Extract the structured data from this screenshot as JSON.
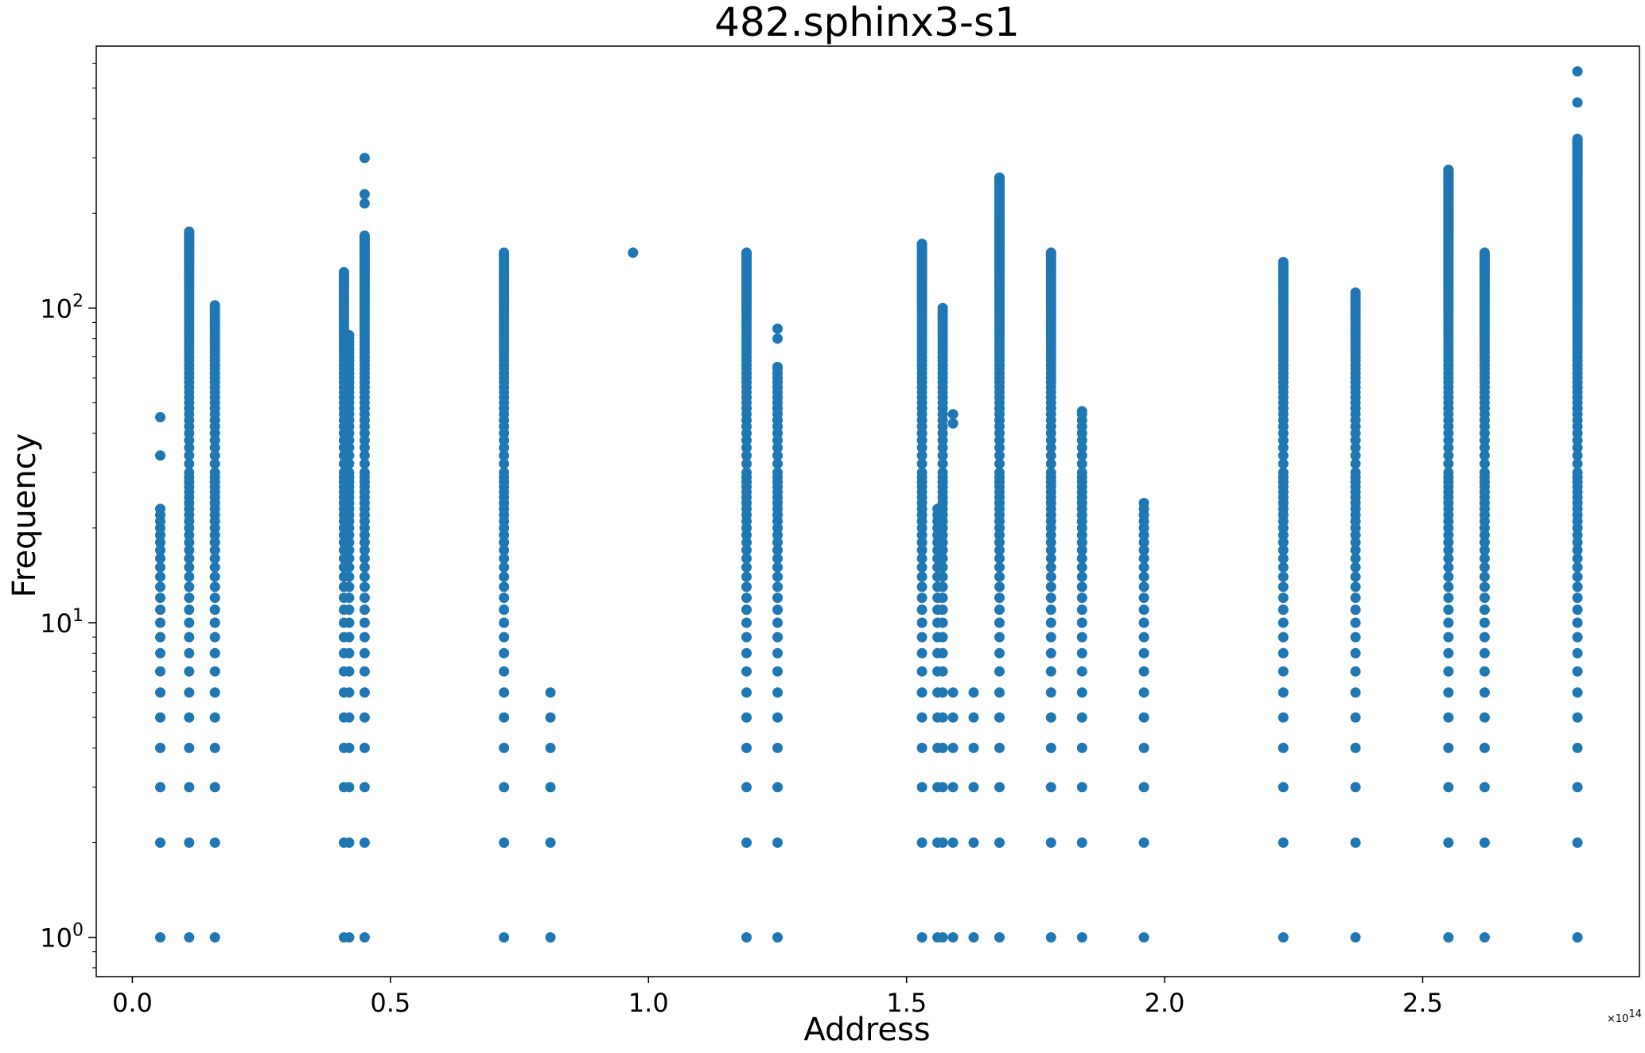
{
  "chart_data": {
    "type": "scatter",
    "title": "482.sphinx3-s1",
    "xlabel": "Address",
    "ylabel": "Frequency",
    "x_multiplier": "×10",
    "x_multiplier_exp": "14",
    "xlim": [
      -0.07,
      2.92
    ],
    "ylim": [
      0.75,
      680
    ],
    "yscale": "log",
    "x_ticks": [
      0.0,
      0.5,
      1.0,
      1.5,
      2.0,
      2.5
    ],
    "x_tick_labels": [
      "0.0",
      "0.5",
      "1.0",
      "1.5",
      "2.0",
      "2.5"
    ],
    "y_ticks": [
      1,
      10,
      100
    ],
    "y_tick_labels": [
      {
        "base": "10",
        "exp": "0"
      },
      {
        "base": "10",
        "exp": "1"
      },
      {
        "base": "10",
        "exp": "2"
      }
    ],
    "color": "#1f77b4",
    "grid": false,
    "columns": [
      {
        "x": 0.054,
        "ymin": 1,
        "ymax": 23,
        "extra": [
          34,
          45
        ]
      },
      {
        "x": 0.11,
        "ymin": 1,
        "ymax": 175
      },
      {
        "x": 0.16,
        "ymin": 1,
        "ymax": 102
      },
      {
        "x": 0.41,
        "ymin": 1,
        "ymax": 130
      },
      {
        "x": 0.42,
        "ymin": 1,
        "ymax": 82
      },
      {
        "x": 0.45,
        "ymin": 1,
        "ymax": 170,
        "extra": [
          215,
          230,
          300
        ]
      },
      {
        "x": 0.72,
        "ymin": 1,
        "ymax": 150
      },
      {
        "x": 0.81,
        "ymin": 1,
        "ymax": 6
      },
      {
        "x": 0.97,
        "ymin": 150,
        "ymax": 150
      },
      {
        "x": 1.19,
        "ymin": 1,
        "ymax": 150
      },
      {
        "x": 1.25,
        "ymin": 1,
        "ymax": 65,
        "extra": [
          80,
          86
        ]
      },
      {
        "x": 1.53,
        "ymin": 1,
        "ymax": 160
      },
      {
        "x": 1.56,
        "ymin": 1,
        "ymax": 23
      },
      {
        "x": 1.57,
        "ymin": 1,
        "ymax": 100
      },
      {
        "x": 1.59,
        "ymin": 1,
        "ymax": 6,
        "extra": [
          43,
          46
        ]
      },
      {
        "x": 1.63,
        "ymin": 1,
        "ymax": 6
      },
      {
        "x": 1.68,
        "ymin": 1,
        "ymax": 260
      },
      {
        "x": 1.78,
        "ymin": 1,
        "ymax": 150
      },
      {
        "x": 1.84,
        "ymin": 1,
        "ymax": 47
      },
      {
        "x": 1.96,
        "ymin": 1,
        "ymax": 24
      },
      {
        "x": 2.23,
        "ymin": 1,
        "ymax": 140
      },
      {
        "x": 2.37,
        "ymin": 1,
        "ymax": 112
      },
      {
        "x": 2.55,
        "ymin": 1,
        "ymax": 275
      },
      {
        "x": 2.62,
        "ymin": 1,
        "ymax": 150
      },
      {
        "x": 2.8,
        "ymin": 1,
        "ymax": 345,
        "extra": [
          450,
          565
        ]
      }
    ]
  }
}
